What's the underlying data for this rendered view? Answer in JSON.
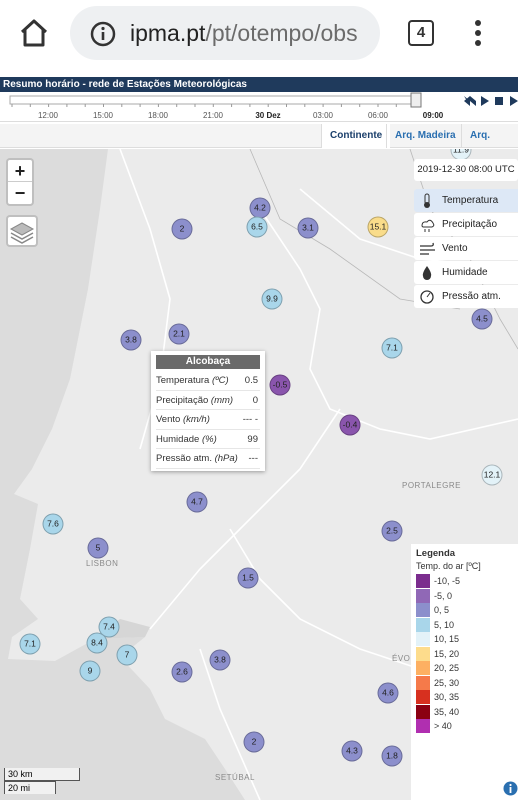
{
  "browser": {
    "url_host": "ipma.pt",
    "url_path": "/pt/otempo/obs",
    "tab_count": "4"
  },
  "header": {
    "title": "Resumo horário - rede de Estações Meteorológicas"
  },
  "timeline": {
    "labels": [
      "12:00",
      "15:00",
      "18:00",
      "21:00",
      "30 Dez",
      "03:00",
      "06:00"
    ],
    "current": "09:00"
  },
  "tabs": [
    "Continente",
    "Arq. Madeira",
    "Arq. Açores"
  ],
  "map": {
    "zoom_in": "+",
    "zoom_out": "−",
    "timestamp": "2019-12-30 08:00 UTC",
    "layers": [
      "Temperatura",
      "Precipitação",
      "Vento",
      "Humidade",
      "Pressão atm."
    ],
    "places": [
      "PORTALEGRE",
      "LISBON",
      "ÉVORA",
      "SETÚBAL"
    ],
    "stations": [
      11.9,
      4.2,
      6.5,
      2,
      3.1,
      15.1,
      9.9,
      2.1,
      3.8,
      4.5,
      7.1,
      -0.5,
      -0.4,
      4.7,
      12.1,
      7.6,
      5,
      2.5,
      1.5,
      7.4,
      8.4,
      7.1,
      7,
      9,
      2.6,
      3.8,
      4.6,
      2,
      4.3,
      1.8
    ],
    "popup": {
      "title": "Alcobaça",
      "rows": [
        {
          "label": "Temperatura",
          "unit": "(ºC)",
          "value": 0.5
        },
        {
          "label": "Precipitação",
          "unit": "(mm)",
          "value": 0
        },
        {
          "label": "Vento",
          "unit": "(km/h)",
          "value": "--- -"
        },
        {
          "label": "Humidade",
          "unit": "(%)",
          "value": 99
        },
        {
          "label": "Pressão atm.",
          "unit": "(hPa)",
          "value": "---"
        }
      ]
    },
    "legend": {
      "title": "Legenda",
      "subtitle": "Temp. do ar [ºC]",
      "entries": [
        "-10, -5",
        "-5, 0",
        "0, 5",
        "5, 10",
        "10, 15",
        "15, 20",
        "20, 25",
        "25, 30",
        "30, 35",
        "35, 40",
        "> 40"
      ]
    },
    "scale": [
      "30 km",
      "20 mi"
    ]
  }
}
